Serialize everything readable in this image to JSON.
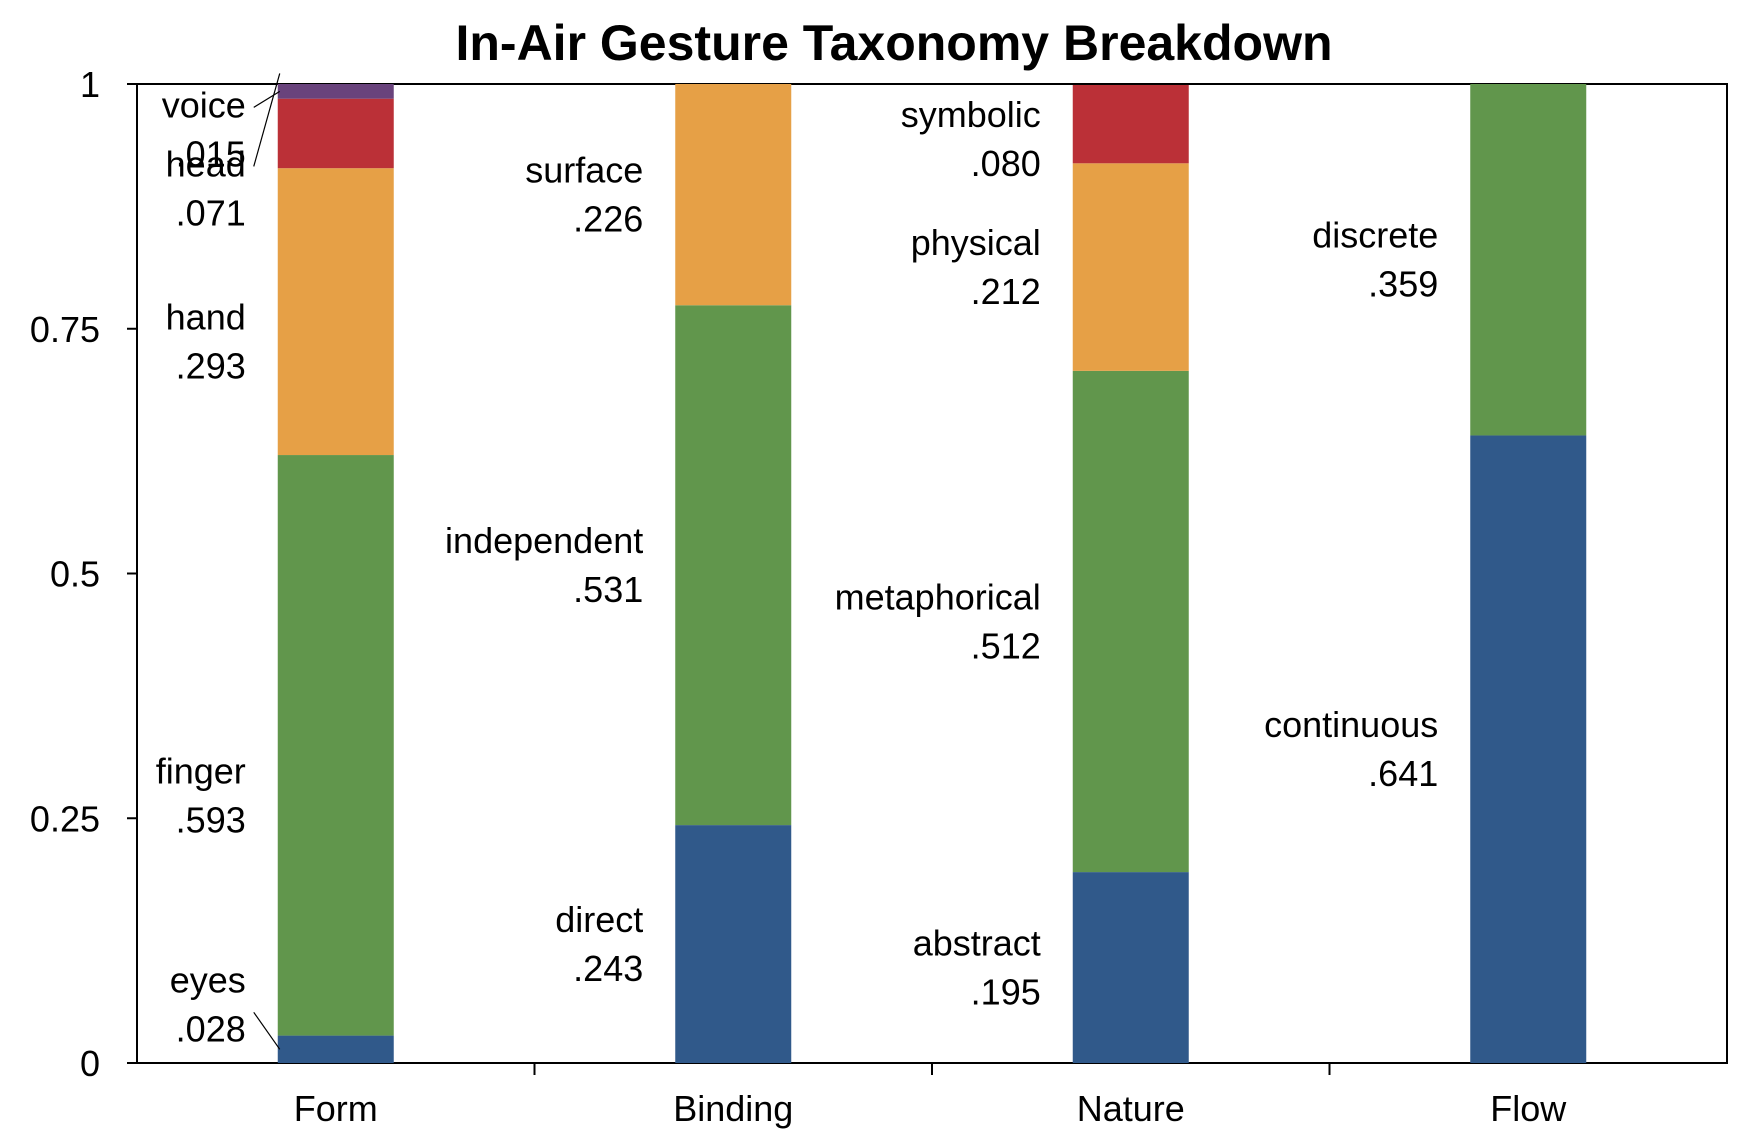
{
  "chart_data": {
    "type": "bar",
    "stacked": true,
    "title": "In-Air Gesture Taxonomy Breakdown",
    "xlabel": "",
    "ylabel": "",
    "ylim": [
      0,
      1
    ],
    "yticks": [
      {
        "value": 0,
        "label": "0"
      },
      {
        "value": 0.25,
        "label": "0.25"
      },
      {
        "value": 0.5,
        "label": "0.5"
      },
      {
        "value": 0.75,
        "label": "0.75"
      },
      {
        "value": 1,
        "label": "1"
      }
    ],
    "grid": false,
    "legend": "none",
    "colors": {
      "blue": "#30598a",
      "green": "#61964c",
      "orange": "#e6a046",
      "red": "#bb3037",
      "purple": "#69437c"
    },
    "categories": [
      {
        "label": "Form",
        "segments": [
          {
            "name": "eyes",
            "value_label": ".028",
            "value": 0.028,
            "color": "blue"
          },
          {
            "name": "finger",
            "value_label": ".593",
            "value": 0.593,
            "color": "green"
          },
          {
            "name": "hand",
            "value_label": ".293",
            "value": 0.293,
            "color": "orange"
          },
          {
            "name": "head",
            "value_label": ".071",
            "value": 0.071,
            "color": "red"
          },
          {
            "name": "voice",
            "value_label": ".015",
            "value": 0.015,
            "color": "purple"
          }
        ]
      },
      {
        "label": "Binding",
        "segments": [
          {
            "name": "direct",
            "value_label": ".243",
            "value": 0.243,
            "color": "blue"
          },
          {
            "name": "independent",
            "value_label": ".531",
            "value": 0.531,
            "color": "green"
          },
          {
            "name": "surface",
            "value_label": ".226",
            "value": 0.226,
            "color": "orange"
          }
        ]
      },
      {
        "label": "Nature",
        "segments": [
          {
            "name": "abstract",
            "value_label": ".195",
            "value": 0.195,
            "color": "blue"
          },
          {
            "name": "metaphorical",
            "value_label": ".512",
            "value": 0.512,
            "color": "green"
          },
          {
            "name": "physical",
            "value_label": ".212",
            "value": 0.212,
            "color": "orange"
          },
          {
            "name": "symbolic",
            "value_label": ".080",
            "value": 0.08,
            "color": "red"
          }
        ]
      },
      {
        "label": "Flow",
        "segments": [
          {
            "name": "continuous",
            "value_label": ".641",
            "value": 0.641,
            "color": "blue"
          },
          {
            "name": "discrete",
            "value_label": ".359",
            "value": 0.359,
            "color": "green"
          }
        ]
      }
    ]
  }
}
